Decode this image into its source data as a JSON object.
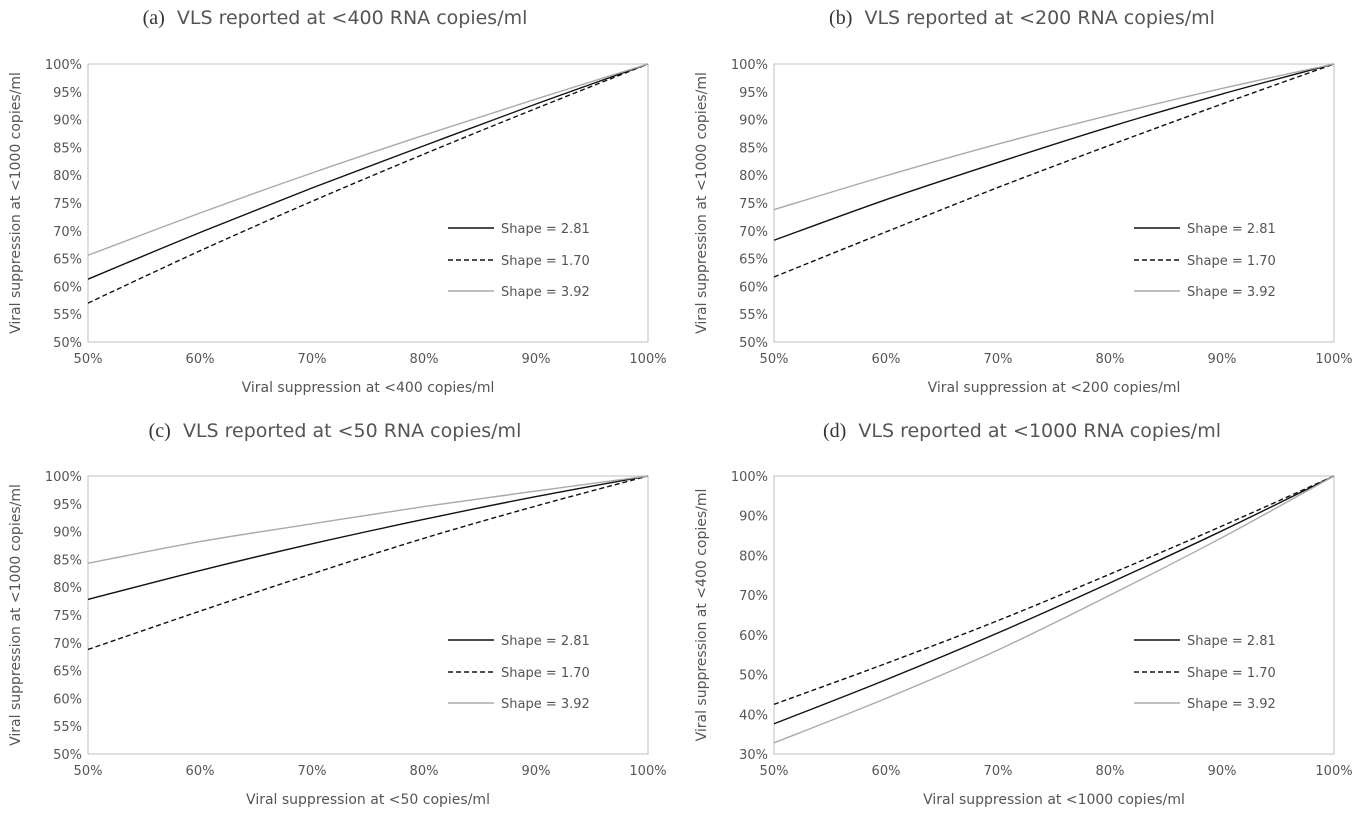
{
  "chart_data": [
    {
      "type": "line",
      "panel_label": "(a)",
      "title": "VLS reported at <400 RNA copies/ml",
      "xlabel": "Viral suppression at <400 copies/ml",
      "ylabel": "Viral suppression at <1000 copies/ml",
      "xlim": [
        0.5,
        1.0
      ],
      "ylim": [
        0.5,
        1.0
      ],
      "x_ticks": [
        "50%",
        "60%",
        "70%",
        "80%",
        "90%",
        "100%"
      ],
      "y_ticks": [
        "50%",
        "55%",
        "60%",
        "65%",
        "70%",
        "75%",
        "80%",
        "85%",
        "90%",
        "95%",
        "100%"
      ],
      "grid": false,
      "legend_position": "right",
      "x": [
        0.5,
        0.6,
        0.7,
        0.8,
        0.9,
        1.0
      ],
      "series": [
        {
          "name": "Shape = 2.81",
          "style": "solid",
          "color": "#111111",
          "values": [
            0.613,
            0.697,
            0.777,
            0.853,
            0.928,
            1.0
          ]
        },
        {
          "name": "Shape = 1.70",
          "style": "dashed",
          "color": "#111111",
          "values": [
            0.57,
            0.664,
            0.753,
            0.838,
            0.92,
            1.0
          ]
        },
        {
          "name": "Shape = 3.92",
          "style": "solid",
          "color": "#aaaaaa",
          "values": [
            0.656,
            0.732,
            0.804,
            0.872,
            0.937,
            1.0
          ]
        }
      ]
    },
    {
      "type": "line",
      "panel_label": "(b)",
      "title": "VLS reported at <200 RNA copies/ml",
      "xlabel": "Viral suppression at <200 copies/ml",
      "ylabel": "Viral suppression at <1000 copies/ml",
      "xlim": [
        0.5,
        1.0
      ],
      "ylim": [
        0.5,
        1.0
      ],
      "x_ticks": [
        "50%",
        "60%",
        "70%",
        "80%",
        "90%",
        "100%"
      ],
      "y_ticks": [
        "50%",
        "55%",
        "60%",
        "65%",
        "70%",
        "75%",
        "80%",
        "85%",
        "90%",
        "95%",
        "100%"
      ],
      "grid": false,
      "legend_position": "right",
      "x": [
        0.5,
        0.6,
        0.7,
        0.8,
        0.9,
        1.0
      ],
      "series": [
        {
          "name": "Shape = 2.81",
          "style": "solid",
          "color": "#111111",
          "values": [
            0.683,
            0.756,
            0.823,
            0.887,
            0.946,
            1.0
          ]
        },
        {
          "name": "Shape = 1.70",
          "style": "dashed",
          "color": "#111111",
          "values": [
            0.617,
            0.698,
            0.778,
            0.854,
            0.928,
            1.0
          ]
        },
        {
          "name": "Shape = 3.92",
          "style": "solid",
          "color": "#aaaaaa",
          "values": [
            0.738,
            0.799,
            0.856,
            0.908,
            0.956,
            1.0
          ]
        }
      ]
    },
    {
      "type": "line",
      "panel_label": "(c)",
      "title": "VLS reported at <50 RNA copies/ml",
      "xlabel": "Viral suppression at <50 copies/ml",
      "ylabel": "Viral suppression at <1000 copies/ml",
      "xlim": [
        0.5,
        1.0
      ],
      "ylim": [
        0.5,
        1.0
      ],
      "x_ticks": [
        "50%",
        "60%",
        "70%",
        "80%",
        "90%",
        "100%"
      ],
      "y_ticks": [
        "50%",
        "55%",
        "60%",
        "65%",
        "70%",
        "75%",
        "80%",
        "85%",
        "90%",
        "95%",
        "100%"
      ],
      "grid": false,
      "legend_position": "right",
      "x": [
        0.5,
        0.6,
        0.7,
        0.8,
        0.9,
        1.0
      ],
      "series": [
        {
          "name": "Shape = 2.81",
          "style": "solid",
          "color": "#111111",
          "values": [
            0.778,
            0.83,
            0.878,
            0.922,
            0.963,
            1.0
          ]
        },
        {
          "name": "Shape = 1.70",
          "style": "dashed",
          "color": "#111111",
          "values": [
            0.688,
            0.757,
            0.824,
            0.888,
            0.946,
            1.0
          ]
        },
        {
          "name": "Shape = 3.92",
          "style": "solid",
          "color": "#aaaaaa",
          "values": [
            0.843,
            0.882,
            0.914,
            0.945,
            0.973,
            1.0
          ]
        }
      ]
    },
    {
      "type": "line",
      "panel_label": "(d)",
      "title": "VLS reported at <1000 RNA copies/ml",
      "xlabel": "Viral suppression at <1000 copies/ml",
      "ylabel": "Viral suppression at <400 copies/ml",
      "xlim": [
        0.5,
        1.0
      ],
      "ylim": [
        0.3,
        1.0
      ],
      "x_ticks": [
        "50%",
        "60%",
        "70%",
        "80%",
        "90%",
        "100%"
      ],
      "y_ticks": [
        "30%",
        "40%",
        "50%",
        "60%",
        "70%",
        "80%",
        "90%",
        "100%"
      ],
      "grid": false,
      "legend_position": "right",
      "x": [
        0.5,
        0.6,
        0.7,
        0.8,
        0.9,
        1.0
      ],
      "series": [
        {
          "name": "Shape = 2.81",
          "style": "solid",
          "color": "#111111",
          "values": [
            0.376,
            0.487,
            0.605,
            0.731,
            0.862,
            1.0
          ]
        },
        {
          "name": "Shape = 1.70",
          "style": "dashed",
          "color": "#111111",
          "values": [
            0.425,
            0.528,
            0.636,
            0.753,
            0.874,
            1.0
          ]
        },
        {
          "name": "Shape = 3.92",
          "style": "solid",
          "color": "#aaaaaa",
          "values": [
            0.328,
            0.44,
            0.562,
            0.7,
            0.845,
            1.0
          ]
        }
      ]
    }
  ]
}
